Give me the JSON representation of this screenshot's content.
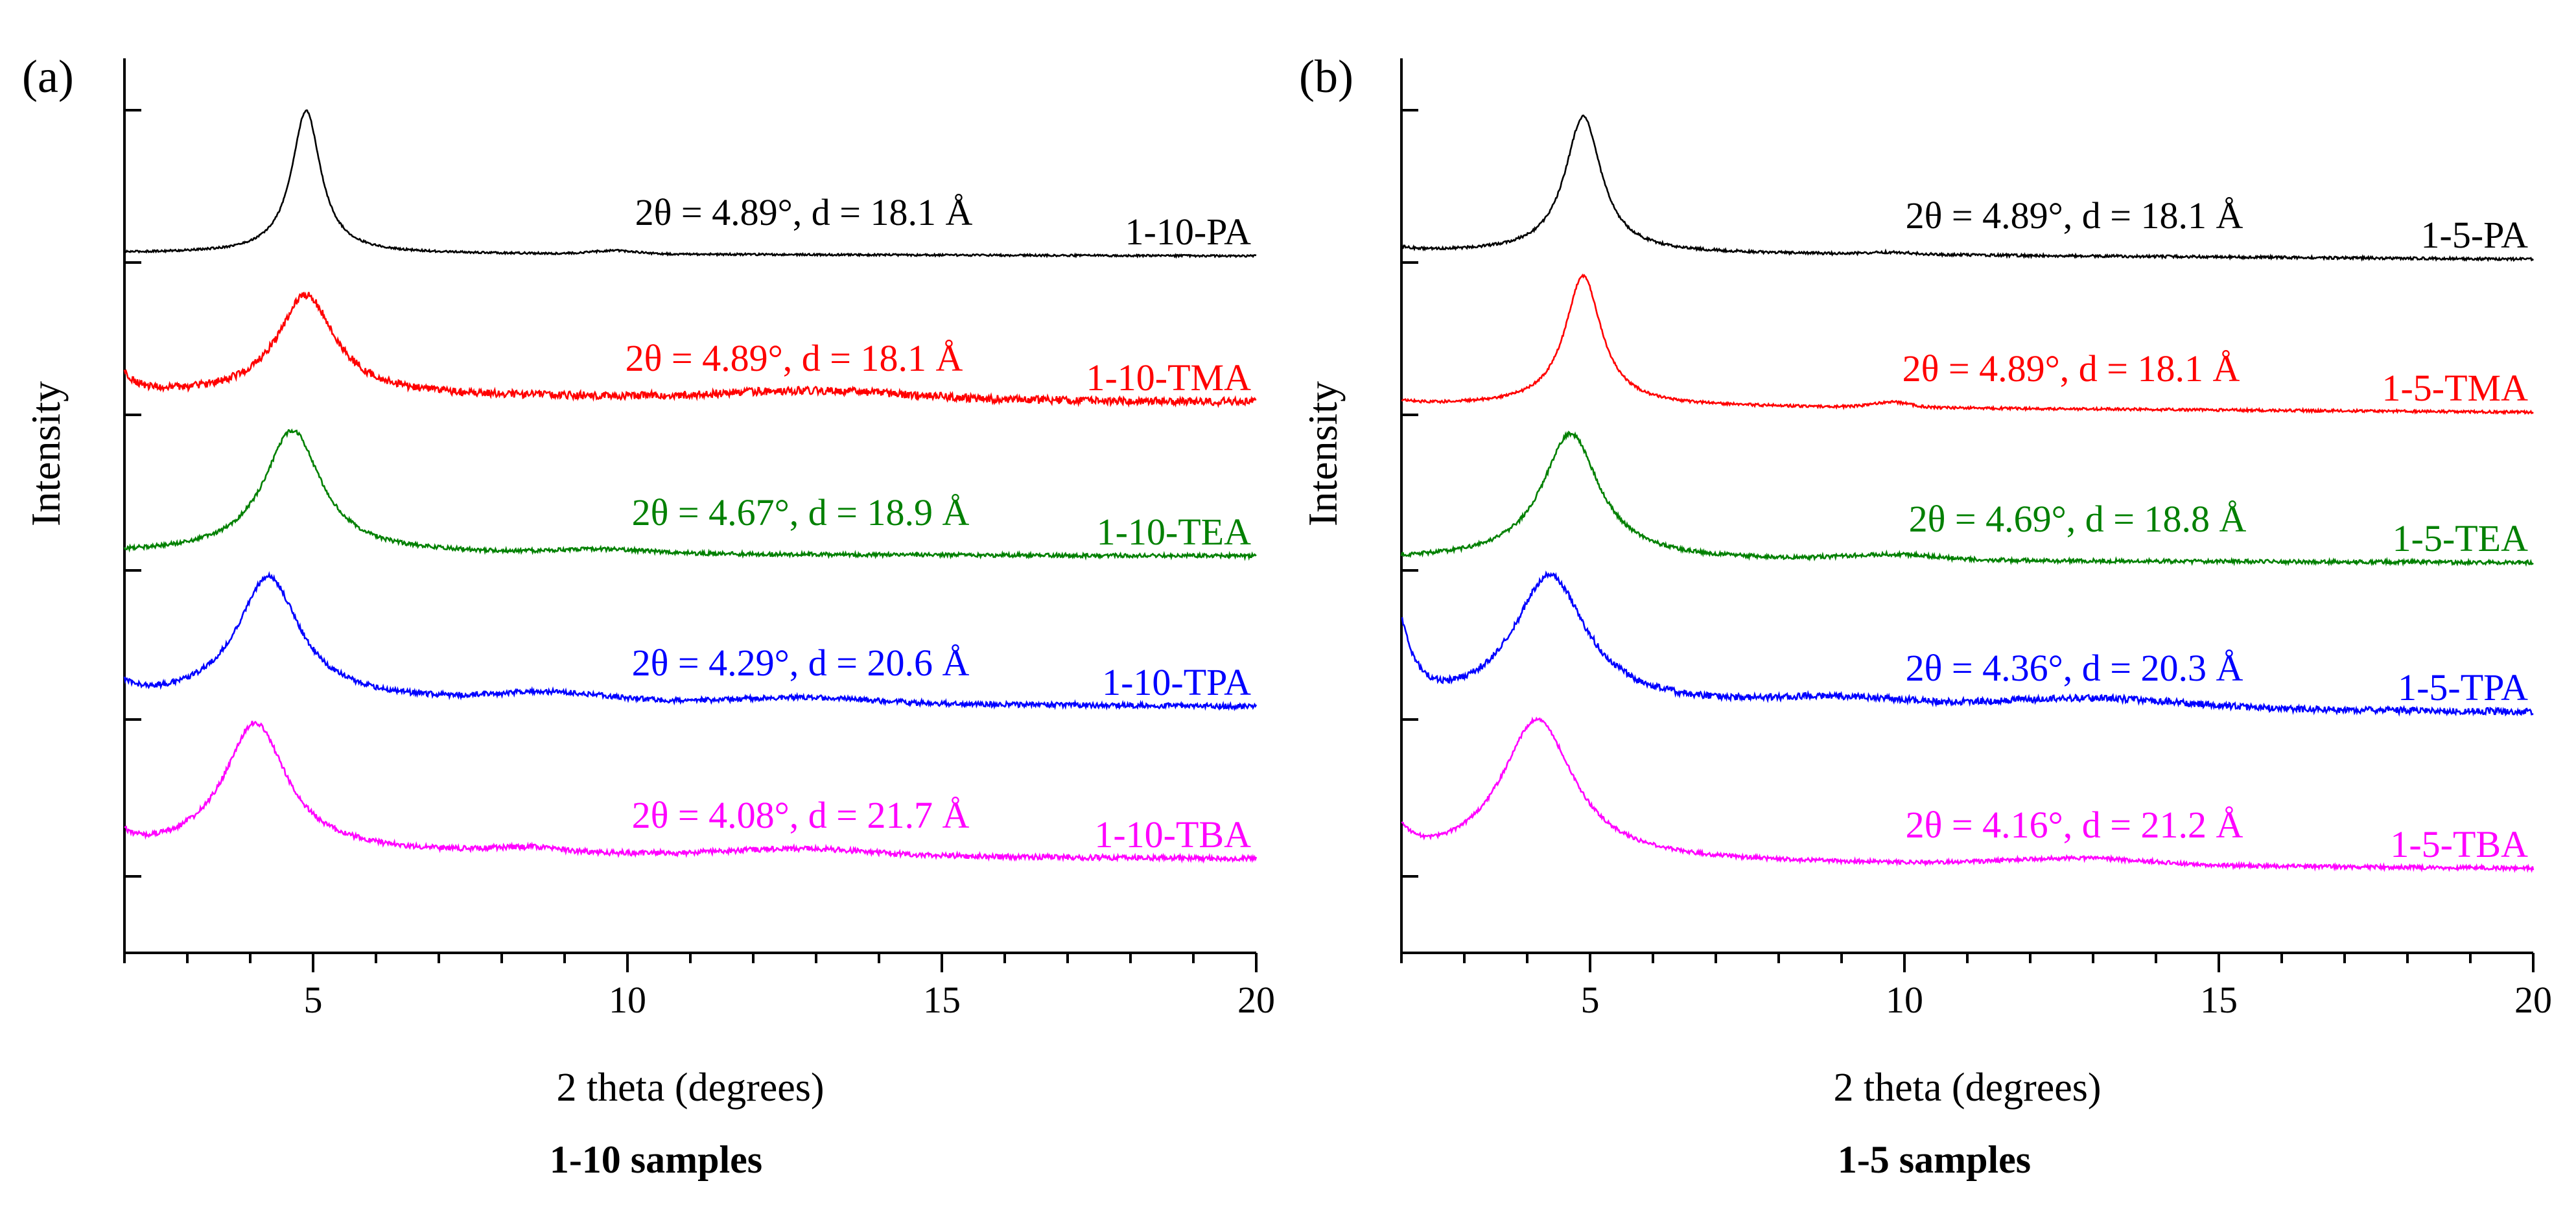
{
  "chart_data": [
    {
      "type": "line",
      "panel_label": "(a)",
      "caption": "1-10 samples",
      "xlabel": "2 theta (degrees)",
      "ylabel": "Intensity",
      "xlim": [
        2,
        20
      ],
      "xticks": [
        5,
        10,
        15,
        20
      ],
      "grid": false,
      "series": [
        {
          "name": "1-10-PA",
          "color": "#000000",
          "peak_2theta": 4.89,
          "peak_height": 2.2,
          "peak_width": 0.28,
          "left_rise": 0.0,
          "broad_humps": [
            [
              9.8,
              0.05,
              0.5
            ]
          ],
          "noise": 0.015,
          "annotation": "2θ = 4.89°, d = 18.1 Å"
        },
        {
          "name": "1-10-TMA",
          "color": "#ff0000",
          "peak_2theta": 4.89,
          "peak_height": 1.55,
          "peak_width": 0.55,
          "left_rise": 0.3,
          "broad_humps": [
            [
              13.0,
              0.12,
              2.0
            ]
          ],
          "noise": 0.06,
          "annotation": "2θ = 4.89°, d = 18.1 Å"
        },
        {
          "name": "1-10-TEA",
          "color": "#008000",
          "peak_2theta": 4.67,
          "peak_height": 1.9,
          "peak_width": 0.55,
          "left_rise": 0.0,
          "broad_humps": [
            [
              9.6,
              0.06,
              1.0
            ]
          ],
          "noise": 0.03,
          "annotation": "2θ = 4.67°, d = 18.9 Å"
        },
        {
          "name": "1-10-TPA",
          "color": "#0000ff",
          "peak_2theta": 4.29,
          "peak_height": 1.9,
          "peak_width": 0.6,
          "left_rise": 0.2,
          "broad_humps": [
            [
              8.8,
              0.12,
              1.2
            ],
            [
              12.8,
              0.08,
              1.5
            ]
          ],
          "noise": 0.04,
          "annotation": "2θ = 4.29°, d = 20.6 Å"
        },
        {
          "name": "1-10-TBA",
          "color": "#ff00ff",
          "peak_2theta": 4.08,
          "peak_height": 2.0,
          "peak_width": 0.6,
          "left_rise": 0.2,
          "broad_humps": [
            [
              8.4,
              0.07,
              0.8
            ],
            [
              12.8,
              0.1,
              1.5
            ]
          ],
          "noise": 0.04,
          "annotation": "2θ = 4.08°, d = 21.7 Å"
        }
      ]
    },
    {
      "type": "line",
      "panel_label": "(b)",
      "caption": "1-5 samples",
      "xlabel": "2 theta (degrees)",
      "ylabel": "Intensity",
      "xlim": [
        2,
        20
      ],
      "xticks": [
        5,
        10,
        15,
        20
      ],
      "grid": false,
      "series": [
        {
          "name": "1-5-PA",
          "color": "#000000",
          "peak_2theta": 4.89,
          "peak_height": 2.1,
          "peak_width": 0.35,
          "left_rise": 0.05,
          "broad_humps": [
            [
              9.8,
              0.03,
              0.5
            ]
          ],
          "noise": 0.02,
          "annotation": "2θ = 4.89°, d = 18.1 Å"
        },
        {
          "name": "1-5-TMA",
          "color": "#ff0000",
          "peak_2theta": 4.89,
          "peak_height": 2.0,
          "peak_width": 0.35,
          "left_rise": 0.05,
          "broad_humps": [
            [
              9.8,
              0.08,
              0.4
            ]
          ],
          "noise": 0.02,
          "annotation": "2θ = 4.89°, d = 18.1 Å"
        },
        {
          "name": "1-5-TEA",
          "color": "#008000",
          "peak_2theta": 4.69,
          "peak_height": 1.95,
          "peak_width": 0.55,
          "left_rise": 0.0,
          "broad_humps": [
            [
              9.8,
              0.08,
              1.0
            ]
          ],
          "noise": 0.03,
          "annotation": "2θ = 4.69°, d = 18.8 Å"
        },
        {
          "name": "1-5-TPA",
          "color": "#0000ff",
          "peak_2theta": 4.36,
          "peak_height": 2.0,
          "peak_width": 0.7,
          "left_rise": 1.2,
          "broad_humps": [
            [
              9.0,
              0.12,
              1.5
            ],
            [
              13.0,
              0.15,
              2.0
            ]
          ],
          "noise": 0.05,
          "annotation": "2θ = 4.36°, d = 20.3 Å"
        },
        {
          "name": "1-5-TBA",
          "color": "#ff00ff",
          "peak_2theta": 4.16,
          "peak_height": 2.2,
          "peak_width": 0.7,
          "left_rise": 0.4,
          "broad_humps": [
            [
              12.8,
              0.1,
              1.5
            ]
          ],
          "noise": 0.03,
          "annotation": "2θ = 4.16°, d = 21.2 Å"
        }
      ]
    }
  ]
}
